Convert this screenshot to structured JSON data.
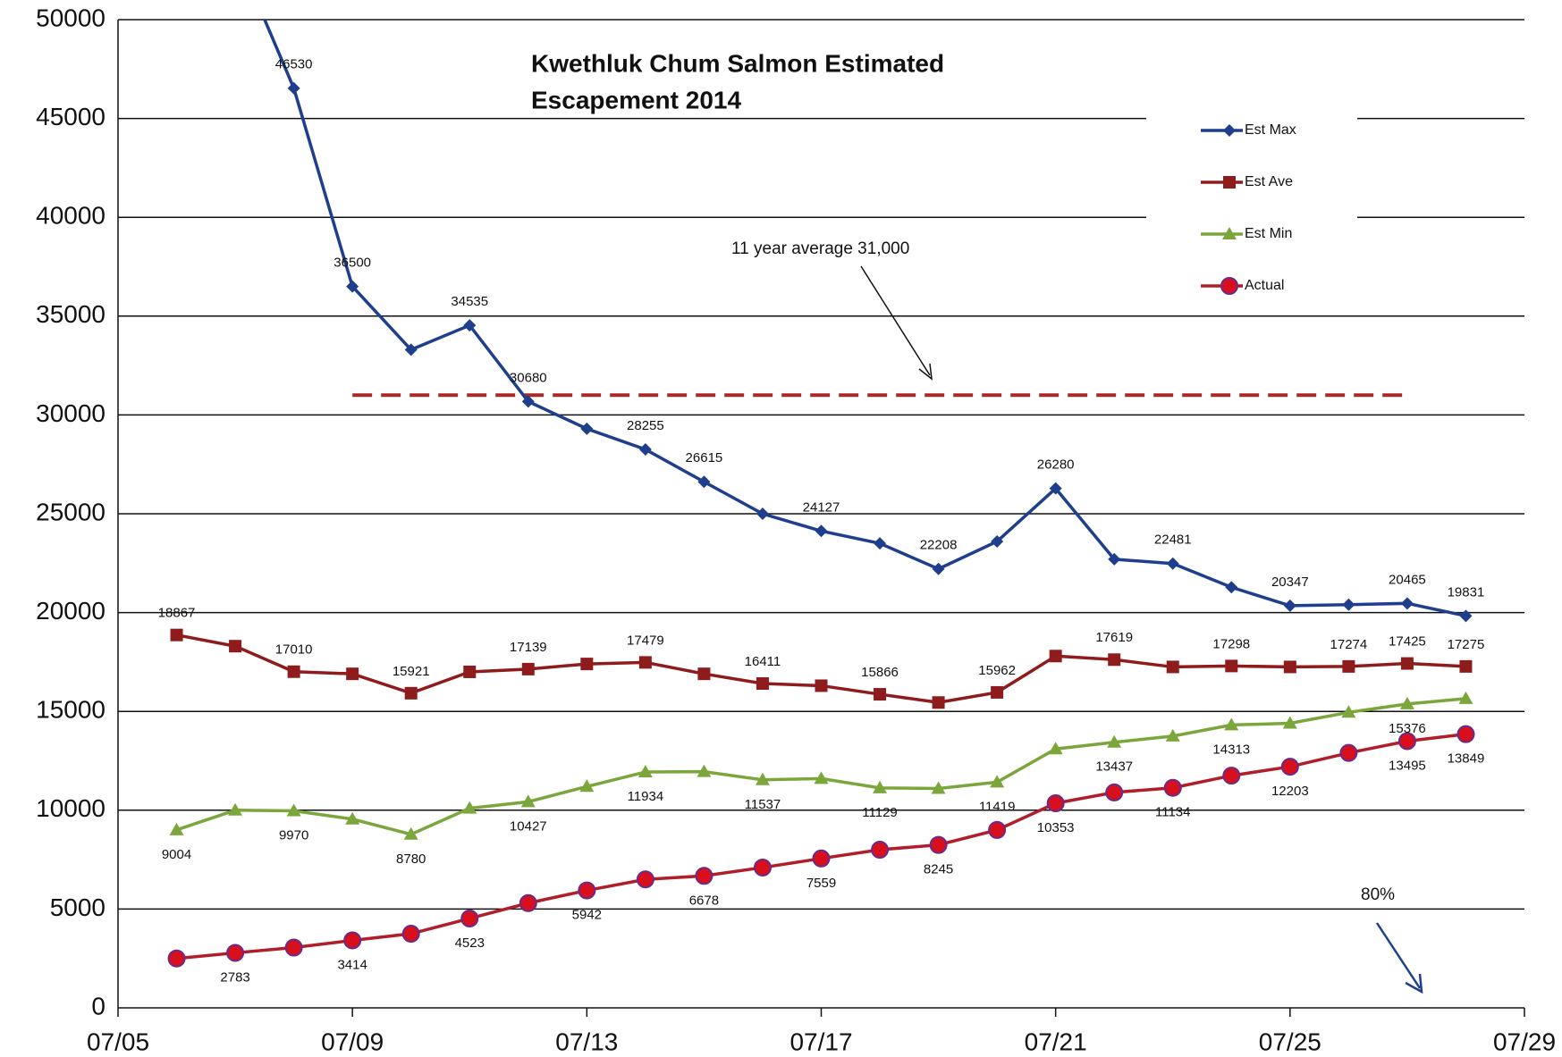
{
  "chart_data": {
    "type": "line",
    "title": [
      "Kwethluk Chum Salmon  Estimated",
      "Escapement  2014"
    ],
    "annotations": [
      "11 year average  31,000",
      "80%"
    ],
    "x": [
      "07/06",
      "07/07",
      "07/08",
      "07/09",
      "07/10",
      "07/11",
      "07/12",
      "07/13",
      "07/14",
      "07/15",
      "07/16",
      "07/17",
      "07/18",
      "07/19",
      "07/20",
      "07/21",
      "07/22",
      "07/23",
      "07/24",
      "07/25",
      "07/26",
      "07/27",
      "07/28"
    ],
    "xlim": [
      "07/05",
      "07/29"
    ],
    "xticks": [
      "07/05",
      "07/09",
      "07/13",
      "07/17",
      "07/21",
      "07/25",
      "07/29"
    ],
    "ylim": [
      0,
      50000
    ],
    "yticks": [
      0,
      5000,
      10000,
      15000,
      20000,
      25000,
      30000,
      35000,
      40000,
      45000,
      50000
    ],
    "grid": true,
    "reference_lines": [
      {
        "value": 31000,
        "x": [
          "07/09",
          "07/27"
        ],
        "color": "#a52a2a"
      }
    ],
    "series": [
      {
        "name": "Est Max",
        "color": "#1f3f8c",
        "marker": "diamond",
        "values": [
          null,
          53500,
          46530,
          36500,
          33300,
          34535,
          30680,
          29300,
          28255,
          26615,
          25000,
          24127,
          23500,
          22208,
          23600,
          26280,
          22700,
          22481,
          21280,
          20347,
          20400,
          20465,
          19831
        ],
        "value_labels": [
          null,
          null,
          "46530",
          "36500",
          null,
          "34535",
          "30680",
          null,
          "28255",
          "26615",
          null,
          "24127",
          null,
          "22208",
          null,
          "26280",
          null,
          "22481",
          null,
          "20347",
          null,
          "20465",
          "19831"
        ]
      },
      {
        "name": "Est Ave",
        "color": "#8e1c1c",
        "marker": "square",
        "values": [
          18867,
          18300,
          17010,
          16900,
          15921,
          17000,
          17139,
          17400,
          17479,
          16900,
          16411,
          16300,
          15866,
          15450,
          15962,
          17800,
          17619,
          17250,
          17298,
          17250,
          17274,
          17425,
          17275
        ],
        "value_labels": [
          "18867",
          null,
          "17010",
          null,
          "15921",
          null,
          "17139",
          null,
          "17479",
          null,
          "16411",
          null,
          "15866",
          null,
          "15962",
          null,
          "17619",
          null,
          "17298",
          null,
          "17274",
          "17425",
          "17275"
        ]
      },
      {
        "name": "Est Min",
        "color": "#7aa63c",
        "marker": "triangle",
        "values": [
          9004,
          10000,
          9970,
          9550,
          8780,
          10100,
          10427,
          11200,
          11934,
          11950,
          11537,
          11600,
          11129,
          11100,
          11419,
          13100,
          13437,
          13750,
          14313,
          14400,
          14950,
          15376,
          15650
        ],
        "value_labels": [
          "9004",
          null,
          "9970",
          null,
          "8780",
          null,
          "10427",
          null,
          "11934",
          null,
          "11537",
          null,
          "11129",
          null,
          "11419",
          null,
          "13437",
          null,
          "14313",
          null,
          null,
          "15376",
          null
        ]
      },
      {
        "name": "Actual",
        "color": "#b01e2a",
        "marker": "circle",
        "values": [
          2500,
          2783,
          3050,
          3414,
          3750,
          4523,
          5300,
          5942,
          6500,
          6678,
          7100,
          7559,
          8000,
          8245,
          9000,
          10353,
          10900,
          11134,
          11750,
          12203,
          12900,
          13495,
          13849
        ],
        "value_labels": [
          null,
          "2783",
          null,
          "3414",
          null,
          "4523",
          null,
          "5942",
          null,
          "6678",
          null,
          "7559",
          null,
          "8245",
          null,
          "10353",
          null,
          "11134",
          null,
          "12203",
          null,
          "13495",
          "13849"
        ]
      }
    ]
  }
}
